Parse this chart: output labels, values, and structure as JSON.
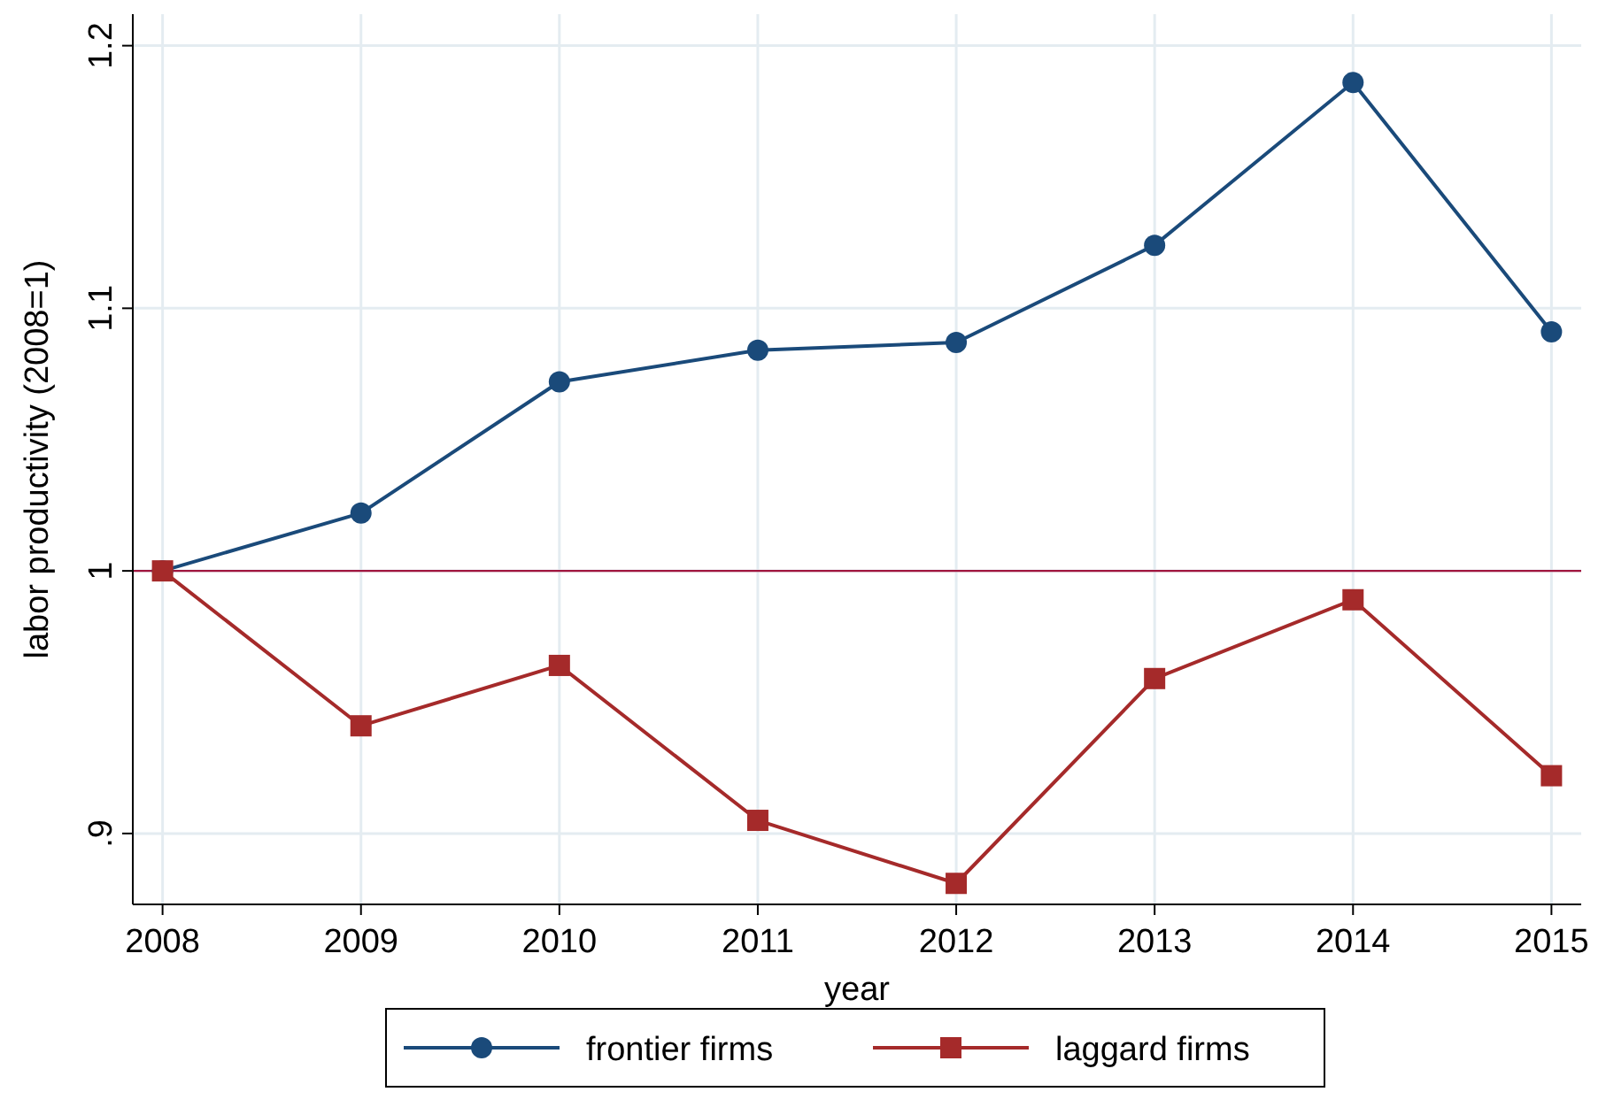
{
  "chart_data": {
    "type": "line",
    "xlabel": "year",
    "ylabel": "labor productivity (2008=1)",
    "x": [
      2008,
      2009,
      2010,
      2011,
      2012,
      2013,
      2014,
      2015
    ],
    "series": [
      {
        "name": "frontier firms",
        "color": "#1a4a7a",
        "marker": "circle",
        "values": [
          1.0,
          1.022,
          1.072,
          1.084,
          1.087,
          1.124,
          1.186,
          1.091
        ]
      },
      {
        "name": "laggard firms",
        "color": "#a52a2a",
        "marker": "square",
        "values": [
          1.0,
          0.941,
          0.964,
          0.905,
          0.881,
          0.959,
          0.989,
          0.922
        ]
      }
    ],
    "xlim": [
      2007.85,
      2015.15
    ],
    "ylim": [
      0.873,
      1.212
    ],
    "xticks": [
      2008,
      2009,
      2010,
      2011,
      2012,
      2013,
      2014,
      2015
    ],
    "yticks": [
      {
        "value": 0.9,
        "label": ".9"
      },
      1,
      1.1,
      1.2
    ],
    "ref_lines": [
      {
        "axis": "y",
        "value": 1,
        "color": "#a0153e"
      }
    ],
    "grid": true,
    "legend": "bottom",
    "line_style": "solid"
  }
}
